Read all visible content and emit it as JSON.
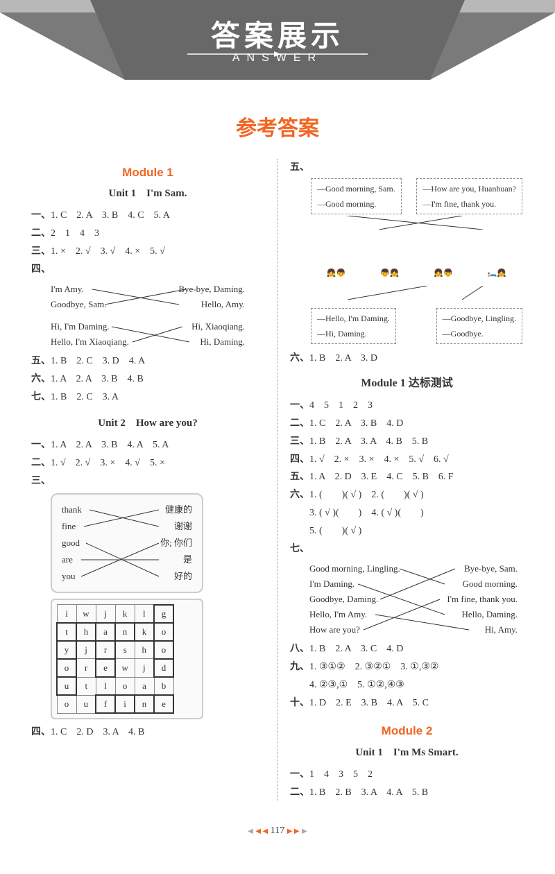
{
  "banner": {
    "title": "答案展示",
    "subtitle": "ANSWER"
  },
  "pageTitle": "参考答案",
  "left": {
    "mod1": "Module 1",
    "unit1": "Unit 1　I'm Sam.",
    "u1": {
      "r1": "1. C　2. A　3. B　4. C　5. A",
      "r2": "2　1　4　3",
      "r3": "1. ×　2. √　3. √　4. ×　5. √",
      "m1": {
        "L": [
          "I'm Amy.",
          "Goodbye, Sam."
        ],
        "R": [
          "Bye-bye, Daming.",
          "Hello, Amy."
        ]
      },
      "m2": {
        "L": [
          "Hi, I'm Daming.",
          "Hello, I'm Xiaoqiang."
        ],
        "R": [
          "Hi, Xiaoqiang.",
          "Hi, Daming."
        ]
      },
      "r5": "1. B　2. C　3. D　4. A",
      "r6": "1. A　2. A　3. B　4. B",
      "r7": "1. B　2. C　3. A"
    },
    "unit2": "Unit 2　How are you?",
    "u2": {
      "r1": "1. A　2. A　3. B　4. A　5. A",
      "r2": "1. √　2. √　3. ×　4. √　5. ×",
      "vocab": {
        "en": [
          "thank",
          "fine",
          "good",
          "are",
          "you"
        ],
        "zh": [
          "健康的",
          "谢谢",
          "你; 你们",
          "是",
          "好的"
        ]
      },
      "grid": [
        [
          "i",
          "w",
          "j",
          "k",
          "l",
          "g"
        ],
        [
          "t",
          "h",
          "a",
          "n",
          "k",
          "o"
        ],
        [
          "y",
          "j",
          "r",
          "s",
          "h",
          "o"
        ],
        [
          "o",
          "r",
          "e",
          "w",
          "j",
          "d"
        ],
        [
          "u",
          "t",
          "l",
          "o",
          "a",
          "b"
        ],
        [
          "o",
          "u",
          "f",
          "i",
          "n",
          "e"
        ]
      ],
      "r4": "1. C　2. D　3. A　4. B"
    }
  },
  "right": {
    "dlg": {
      "topL": [
        "—Good morning, Sam.",
        "—Good morning."
      ],
      "topR": [
        "—How are you, Huanhuan?",
        "—I'm fine, thank you."
      ],
      "botL": [
        "—Hello, I'm Daming.",
        "—Hi, Daming."
      ],
      "botR": [
        "—Goodbye, Lingling.",
        "—Goodbye."
      ]
    },
    "r6a": "1. B　2. A　3. D",
    "test": "Module 1 达标测试",
    "t": {
      "r1": "4　5　1　2　3",
      "r2": "1. C　2. A　3. B　4. D",
      "r3": "1. B　2. A　3. A　4. B　5. B",
      "r4": "1. √　2. ×　3. ×　4. ×　5. √　6. √",
      "r5": "1. A　2. D　3. E　4. C　5. B　6. F",
      "r6a": "1. (　　)( √ )　2. (　　)( √ )",
      "r6b": "3. ( √ )(　　)　4. ( √ )(　　)",
      "r6c": "5. (　　)( √ )",
      "m7": {
        "L": [
          "Good morning, Lingling.",
          "I'm Daming.",
          "Goodbye, Daming.",
          "Hello, I'm Amy.",
          "How are you?"
        ],
        "R": [
          "Bye-bye, Sam.",
          "Good morning.",
          "I'm fine, thank you.",
          "Hello, Daming.",
          "Hi, Amy."
        ]
      },
      "r8": "1. B　2. A　3. C　4. D",
      "r9a": "1. ③①②　2. ③②①　3. ①,③②",
      "r9b": "4. ②③,①　5. ①②,④③",
      "r10": "1. D　2. E　3. B　4. A　5. C"
    },
    "mod2": "Module 2",
    "unit1b": "Unit 1　I'm Ms Smart.",
    "m2": {
      "r1": "1　4　3　5　2",
      "r2": "1. B　2. B　3. A　4. A　5. B"
    }
  },
  "footer": {
    "page": "117"
  }
}
